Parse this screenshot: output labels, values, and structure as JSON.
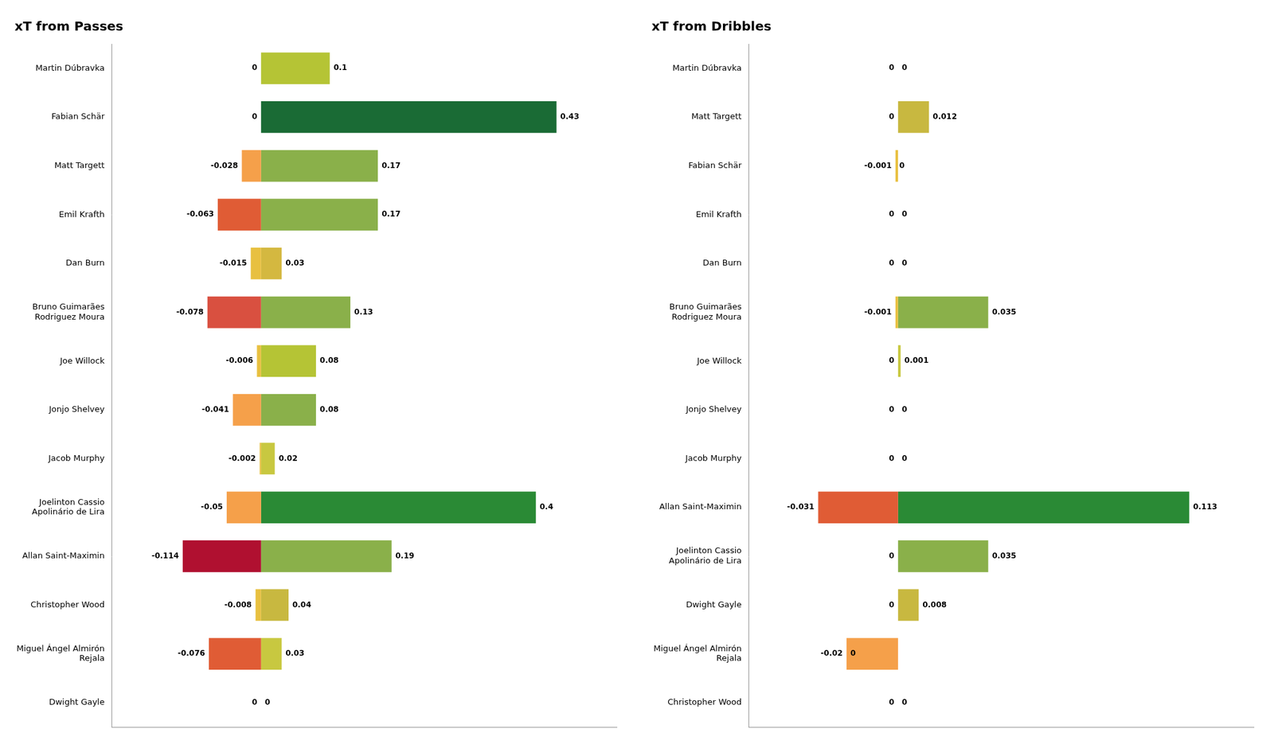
{
  "chart_data": [
    {
      "type": "bar",
      "title": "xT from Passes",
      "orientation": "horizontal",
      "stacked": true,
      "data_labels": true,
      "tick_labels": "y",
      "grid": false,
      "categories": [
        "Martin Dúbravka",
        "Fabian Schär",
        "Matt Targett",
        "Emil Krafth",
        "Dan Burn",
        "Bruno Guimarães\nRodriguez Moura",
        "Joe Willock",
        "Jonjo Shelvey",
        "Jacob Murphy",
        "Joelinton Cassio\nApolinário de Lira",
        "Allan Saint-Maximin",
        "Christopher Wood",
        "Miguel Ángel Almirón\nRejala",
        "Dwight Gayle"
      ],
      "series": [
        {
          "values": [
            0,
            0,
            -0.028,
            -0.063,
            -0.015,
            -0.078,
            -0.006,
            -0.041,
            -0.002,
            -0.05,
            -0.114,
            -0.008,
            -0.076,
            0
          ],
          "colors": [
            "#ffffff",
            "#ffffff",
            "#f5a04a",
            "#e05c35",
            "#e8c040",
            "#d95040",
            "#e8c040",
            "#f5a04a",
            "#e8c040",
            "#f5a04a",
            "#b01030",
            "#e8c040",
            "#e05c35",
            "#ffffff"
          ]
        },
        {
          "values": [
            0.1,
            0.43,
            0.17,
            0.17,
            0.03,
            0.13,
            0.08,
            0.08,
            0.02,
            0.4,
            0.19,
            0.04,
            0.03,
            0
          ],
          "colors": [
            "#b5c435",
            "#1a6b35",
            "#8ab04a",
            "#8ab04a",
            "#d4b840",
            "#8ab04a",
            "#b5c435",
            "#8ab04a",
            "#c8c840",
            "#2a8a35",
            "#8ab04a",
            "#c8b840",
            "#c8c840",
            "#ffffff"
          ]
        }
      ],
      "xlim": [
        -0.2175,
        0.5175
      ]
    },
    {
      "type": "bar",
      "title": "xT from Dribbles",
      "orientation": "horizontal",
      "stacked": true,
      "data_labels": true,
      "tick_labels": "y",
      "grid": false,
      "categories": [
        "Martin Dúbravka",
        "Matt Targett",
        "Fabian Schär",
        "Emil Krafth",
        "Dan Burn",
        "Bruno Guimarães\nRodriguez Moura",
        "Joe Willock",
        "Jonjo Shelvey",
        "Jacob Murphy",
        "Allan Saint-Maximin",
        "Joelinton Cassio\nApolinário de Lira",
        "Dwight Gayle",
        "Miguel Ángel Almirón\nRejala",
        "Christopher Wood"
      ],
      "series": [
        {
          "values": [
            0,
            0,
            -0.001,
            0,
            0,
            -0.001,
            0,
            0,
            0,
            -0.031,
            0,
            0,
            -0.02,
            0
          ],
          "colors": [
            "#ffffff",
            "#ffffff",
            "#e8c040",
            "#ffffff",
            "#ffffff",
            "#e8c040",
            "#ffffff",
            "#ffffff",
            "#ffffff",
            "#e05c35",
            "#ffffff",
            "#ffffff",
            "#f5a04a",
            "#ffffff"
          ]
        },
        {
          "values": [
            0,
            0.012,
            0,
            0,
            0,
            0.035,
            0.001,
            0,
            0,
            0.113,
            0.035,
            0.008,
            0,
            0
          ],
          "colors": [
            "#ffffff",
            "#c8b840",
            "#ffffff",
            "#ffffff",
            "#ffffff",
            "#8ab04a",
            "#c8c840",
            "#ffffff",
            "#ffffff",
            "#2a8a35",
            "#8ab04a",
            "#c8b840",
            "#ffffff",
            "#ffffff"
          ]
        }
      ],
      "xlim": [
        -0.058,
        0.138
      ]
    }
  ]
}
